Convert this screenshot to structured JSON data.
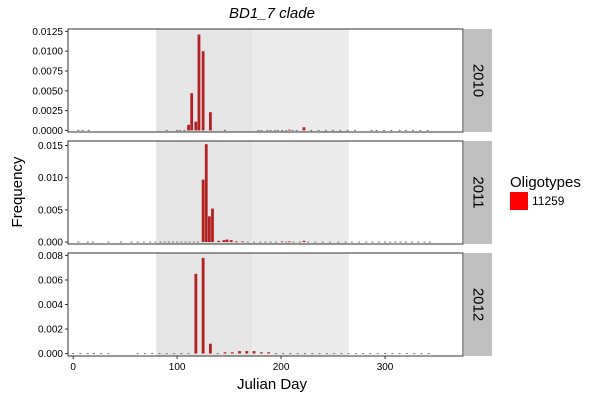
{
  "chart_data": {
    "type": "bar",
    "title": "BD1_7 clade",
    "xlabel": "Julian Day",
    "ylabel": "Frequency",
    "xlim": [
      -5,
      375
    ],
    "x_ticks": [
      0,
      100,
      200,
      300
    ],
    "legend": {
      "title": "Oligotypes",
      "placement": "right",
      "entries": [
        {
          "label": "11259",
          "color": "#ff0000"
        }
      ]
    },
    "series_color": "#b22222",
    "shaded_periods": [
      {
        "start": 80,
        "end": 172,
        "color": "#e5e5e5"
      },
      {
        "start": 172,
        "end": 265,
        "color": "#ebebeb"
      }
    ],
    "panels": [
      {
        "strip": "2010",
        "ylim": [
          -0.0002,
          0.0128
        ],
        "y_ticks": [
          0,
          0.0025,
          0.005,
          0.0075,
          0.01,
          0.0125
        ],
        "y_tick_labels": [
          "0.0000",
          "0.0025",
          "0.0050",
          "0.0075",
          "0.0100",
          "0.0125"
        ],
        "bars": [
          {
            "x": 111,
            "y": 0.0007
          },
          {
            "x": 114,
            "y": 0.0047
          },
          {
            "x": 118,
            "y": 0.0011
          },
          {
            "x": 121,
            "y": 0.0121
          },
          {
            "x": 125,
            "y": 0.01
          },
          {
            "x": 132,
            "y": 0.0023
          },
          {
            "x": 208,
            "y": 0.0001
          },
          {
            "x": 222,
            "y": 0.0004
          }
        ],
        "zeros": [
          5,
          9,
          15,
          90,
          100,
          103,
          107,
          146,
          178,
          181,
          187,
          190,
          194,
          197,
          201,
          205,
          211,
          215,
          229,
          236,
          243,
          250,
          257,
          264,
          271,
          287,
          292,
          299,
          306,
          314,
          320,
          327,
          334,
          341
        ]
      },
      {
        "strip": "2011",
        "ylim": [
          -0.0003,
          0.0157
        ],
        "y_ticks": [
          0,
          0.005,
          0.01,
          0.015
        ],
        "y_tick_labels": [
          "0.000",
          "0.005",
          "0.010",
          "0.015"
        ],
        "bars": [
          {
            "x": 125,
            "y": 0.0097
          },
          {
            "x": 128,
            "y": 0.0152
          },
          {
            "x": 131,
            "y": 0.004
          },
          {
            "x": 134,
            "y": 0.0052
          },
          {
            "x": 140,
            "y": 0.0002
          },
          {
            "x": 145,
            "y": 0.0003
          },
          {
            "x": 148,
            "y": 0.0004
          },
          {
            "x": 152,
            "y": 0.0003
          },
          {
            "x": 157,
            "y": 0.0001
          },
          {
            "x": 163,
            "y": 0.0001
          },
          {
            "x": 201,
            "y": 0.0001
          },
          {
            "x": 208,
            "y": 0.0001
          },
          {
            "x": 222,
            "y": 0.0002
          }
        ],
        "zeros": [
          5,
          14,
          19,
          34,
          46,
          56,
          62,
          68,
          74,
          79,
          84,
          88,
          92,
          96,
          100,
          104,
          108,
          112,
          116,
          120,
          168,
          174,
          180,
          185,
          190,
          195,
          205,
          212,
          218,
          226,
          233,
          240,
          247,
          255,
          262,
          268,
          275,
          282,
          288,
          294,
          300,
          305,
          310,
          315,
          320,
          326,
          332,
          338,
          343
        ]
      },
      {
        "strip": "2012",
        "ylim": [
          -0.0002,
          0.0082
        ],
        "y_ticks": [
          0,
          0.002,
          0.004,
          0.006,
          0.008
        ],
        "y_tick_labels": [
          "0.000",
          "0.002",
          "0.004",
          "0.006",
          "0.008"
        ],
        "bars": [
          {
            "x": 118,
            "y": 0.0065
          },
          {
            "x": 125,
            "y": 0.0078
          },
          {
            "x": 132,
            "y": 0.0008
          },
          {
            "x": 146,
            "y": 0.0001
          },
          {
            "x": 153,
            "y": 0.0001
          },
          {
            "x": 160,
            "y": 0.0002
          },
          {
            "x": 167,
            "y": 0.0002
          },
          {
            "x": 174,
            "y": 0.0002
          },
          {
            "x": 181,
            "y": 0.0001
          },
          {
            "x": 188,
            "y": 0.0001
          }
        ],
        "zeros": [
          0,
          7,
          14,
          20,
          27,
          34,
          62,
          69,
          76,
          83,
          90,
          97,
          104,
          111,
          139,
          195,
          202,
          209,
          216,
          223,
          230,
          237,
          244,
          251,
          258,
          265,
          272,
          279,
          286,
          293,
          300,
          307,
          314,
          321,
          328,
          335,
          342
        ]
      }
    ]
  }
}
